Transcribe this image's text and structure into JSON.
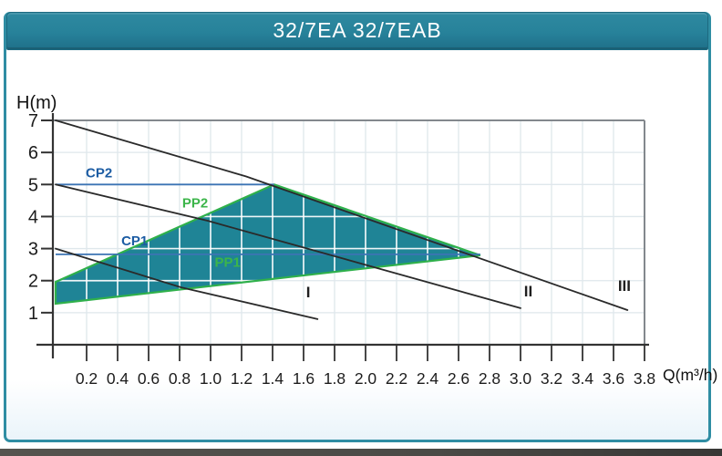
{
  "header": {
    "title": "32/7EA 32/7EAB"
  },
  "colors": {
    "teal_header": "#27829a",
    "teal_border": "#2f8da3",
    "region_fill": "#1f8496",
    "region_border": "#2fb04b",
    "grid": "#dfe7ec",
    "inner_grid": "#cfeef2",
    "cp_line_blue": "#3c74b4",
    "cp_text_blue": "#1c5ca3",
    "pp_text_green": "#3cb54a",
    "curve_dark": "#2a2a2a",
    "axis_dark": "#333333",
    "frame_gray": "#83888d",
    "tick_text": "#1c1c1c"
  },
  "chart_data": {
    "type": "line",
    "title": "32/7EA 32/7EAB",
    "xlabel": "Q(m³/h)",
    "ylabel": "H(m)",
    "xlim": [
      0,
      3.8
    ],
    "ylim": [
      0,
      7
    ],
    "grid": true,
    "x_ticks": [
      "0.2",
      "0.4",
      "0.6",
      "0.8",
      "1.0",
      "1.2",
      "1.4",
      "1.6",
      "1.8",
      "2.0",
      "2.2",
      "2.4",
      "2.6",
      "2.8",
      "3.0",
      "3.2",
      "3.4",
      "3.6",
      "3.8"
    ],
    "y_ticks": [
      "1",
      "2",
      "3",
      "4",
      "5",
      "6",
      "7"
    ],
    "series": [
      {
        "name": "I",
        "points": [
          [
            0,
            3.0
          ],
          [
            0.81,
            1.79
          ],
          [
            1.69,
            0.8
          ]
        ],
        "label": "I",
        "label_pos": [
          1.63,
          1.48
        ]
      },
      {
        "name": "II",
        "points": [
          [
            0,
            5.0
          ],
          [
            0.98,
            3.87
          ],
          [
            3.0,
            1.14
          ]
        ],
        "label": "II",
        "label_pos": [
          3.05,
          1.51
        ]
      },
      {
        "name": "III",
        "points": [
          [
            0,
            7.0
          ],
          [
            1.23,
            5.25
          ],
          [
            3.69,
            1.08
          ]
        ],
        "label": "III",
        "label_pos": [
          3.67,
          1.68
        ]
      }
    ],
    "cp_lines": [
      {
        "name": "CP2",
        "h": 5.0,
        "q_start": 0,
        "q_end": 1.41,
        "label": "CP2",
        "label_pos": [
          0.28,
          5.22
        ]
      },
      {
        "name": "CP1",
        "h": 2.82,
        "q_start": 0,
        "q_end": 2.74,
        "label": "CP1",
        "label_pos": [
          0.51,
          3.1
        ]
      }
    ],
    "operating_region": {
      "vertices": [
        [
          0,
          1.96
        ],
        [
          1.41,
          5.0
        ],
        [
          2.74,
          2.79
        ],
        [
          0,
          1.28
        ]
      ],
      "pp_labels": [
        {
          "name": "PP2",
          "label": "PP2",
          "pos": [
            0.9,
            4.28
          ]
        },
        {
          "name": "PP1",
          "label": "PP1",
          "pos": [
            1.11,
            2.43
          ]
        }
      ]
    }
  }
}
